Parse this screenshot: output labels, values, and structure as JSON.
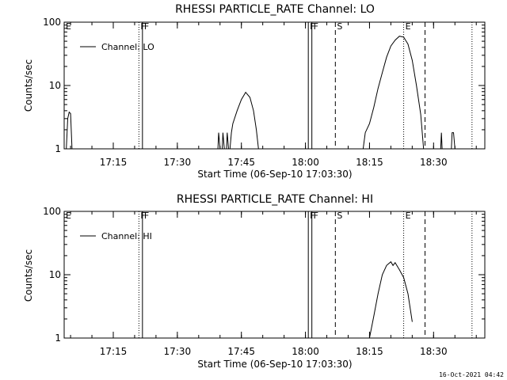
{
  "footer_timestamp": "16-Oct-2021 04:42",
  "chart_data": [
    {
      "type": "line",
      "title": "RHESSI PARTICLE_RATE Channel: LO",
      "xlabel": "Start Time (06-Sep-10 17:03:30)",
      "ylabel": "Counts/sec",
      "y_scale": "log",
      "ylim": [
        1,
        100
      ],
      "xlim": [
        "17:03:30",
        "18:42:00"
      ],
      "x_ticks": [
        "17:15",
        "17:30",
        "17:45",
        "18:00",
        "18:15",
        "18:30"
      ],
      "y_ticks": [
        "1",
        "10",
        "100"
      ],
      "legend": {
        "position": "top-left",
        "label": "Channel: LO"
      },
      "event_markers": [
        {
          "label": "E",
          "time": "17:03:30",
          "style": "none"
        },
        {
          "label": "F",
          "time": "17:21:00",
          "style": "dotted"
        },
        {
          "label": "F",
          "time": "17:21:50",
          "style": "solid"
        },
        {
          "label": "F",
          "time": "18:00:40",
          "style": "solid"
        },
        {
          "label": "F",
          "time": "18:01:30",
          "style": "solid"
        },
        {
          "label": "S",
          "time": "18:07:00",
          "style": "dashed"
        },
        {
          "label": "E",
          "time": "18:23:00",
          "style": "dotted"
        },
        {
          "label": "",
          "time": "18:28:00",
          "style": "dashed"
        },
        {
          "label": "",
          "time": "18:39:00",
          "style": "dotted"
        }
      ],
      "series": [
        {
          "name": "Channel: LO",
          "segments": [
            [
              [
                "17:04:00",
                1
              ],
              [
                "17:04:20",
                3.0
              ],
              [
                "17:04:40",
                3.8
              ],
              [
                "17:05:00",
                3.6
              ],
              [
                "17:05:20",
                1
              ]
            ],
            [
              [
                "17:39:30",
                1
              ],
              [
                "17:39:40",
                1.8
              ],
              [
                "17:40:00",
                1
              ]
            ],
            [
              [
                "17:40:30",
                1
              ],
              [
                "17:40:40",
                1.8
              ],
              [
                "17:41:00",
                1
              ]
            ],
            [
              [
                "17:41:30",
                1
              ],
              [
                "17:41:40",
                1.8
              ],
              [
                "17:42:00",
                1
              ]
            ],
            [
              [
                "17:42:20",
                1
              ],
              [
                "17:42:40",
                1.8
              ],
              [
                "17:43:00",
                2.5
              ],
              [
                "17:44:00",
                4.0
              ],
              [
                "17:45:00",
                6.0
              ],
              [
                "17:46:00",
                7.8
              ],
              [
                "17:47:00",
                6.5
              ],
              [
                "17:47:50",
                4.0
              ],
              [
                "17:48:30",
                2.0
              ],
              [
                "17:49:00",
                1
              ]
            ],
            [
              [
                "18:13:30",
                1
              ],
              [
                "18:14:00",
                1.8
              ],
              [
                "18:15:00",
                2.5
              ],
              [
                "18:16:00",
                4.5
              ],
              [
                "18:17:00",
                9.0
              ],
              [
                "18:18:00",
                16.0
              ],
              [
                "18:19:00",
                28.0
              ],
              [
                "18:20:00",
                42.0
              ],
              [
                "18:21:00",
                52.0
              ],
              [
                "18:22:00",
                60.0
              ],
              [
                "18:23:00",
                58.0
              ],
              [
                "18:24:00",
                45.0
              ],
              [
                "18:25:00",
                25.0
              ],
              [
                "18:26:00",
                10.0
              ],
              [
                "18:27:00",
                3.5
              ],
              [
                "18:27:40",
                1
              ]
            ],
            [
              [
                "18:31:40",
                1
              ],
              [
                "18:31:50",
                1.8
              ],
              [
                "18:32:00",
                1
              ]
            ],
            [
              [
                "18:34:10",
                1
              ],
              [
                "18:34:20",
                1.8
              ],
              [
                "18:34:40",
                1.8
              ],
              [
                "18:35:00",
                1
              ]
            ]
          ]
        }
      ]
    },
    {
      "type": "line",
      "title": "RHESSI PARTICLE_RATE Channel: HI",
      "xlabel": "Start Time (06-Sep-10 17:03:30)",
      "ylabel": "Counts/sec",
      "y_scale": "log",
      "ylim": [
        1,
        100
      ],
      "xlim": [
        "17:03:30",
        "18:42:00"
      ],
      "x_ticks": [
        "17:15",
        "17:30",
        "17:45",
        "18:00",
        "18:15",
        "18:30"
      ],
      "y_ticks": [
        "1",
        "10",
        "100"
      ],
      "legend": {
        "position": "top-left",
        "label": "Channel: HI"
      },
      "event_markers": [
        {
          "label": "E",
          "time": "17:03:30",
          "style": "none"
        },
        {
          "label": "F",
          "time": "17:21:00",
          "style": "dotted"
        },
        {
          "label": "F",
          "time": "17:21:50",
          "style": "solid"
        },
        {
          "label": "F",
          "time": "18:00:40",
          "style": "solid"
        },
        {
          "label": "F",
          "time": "18:01:30",
          "style": "solid"
        },
        {
          "label": "S",
          "time": "18:07:00",
          "style": "dashed"
        },
        {
          "label": "E",
          "time": "18:23:00",
          "style": "dotted"
        },
        {
          "label": "",
          "time": "18:28:00",
          "style": "dashed"
        },
        {
          "label": "",
          "time": "18:39:00",
          "style": "dotted"
        }
      ],
      "series": [
        {
          "name": "Channel: HI",
          "segments": [
            [
              [
                "18:15:00",
                1
              ],
              [
                "18:16:00",
                2.2
              ],
              [
                "18:17:00",
                5.0
              ],
              [
                "18:18:00",
                10.0
              ],
              [
                "18:19:00",
                14.0
              ],
              [
                "18:20:00",
                16.0
              ],
              [
                "18:20:30",
                14.0
              ],
              [
                "18:21:00",
                15.5
              ],
              [
                "18:22:00",
                12.0
              ],
              [
                "18:23:00",
                9.0
              ],
              [
                "18:24:00",
                5.0
              ],
              [
                "18:25:00",
                1.8
              ]
            ]
          ]
        }
      ]
    }
  ]
}
